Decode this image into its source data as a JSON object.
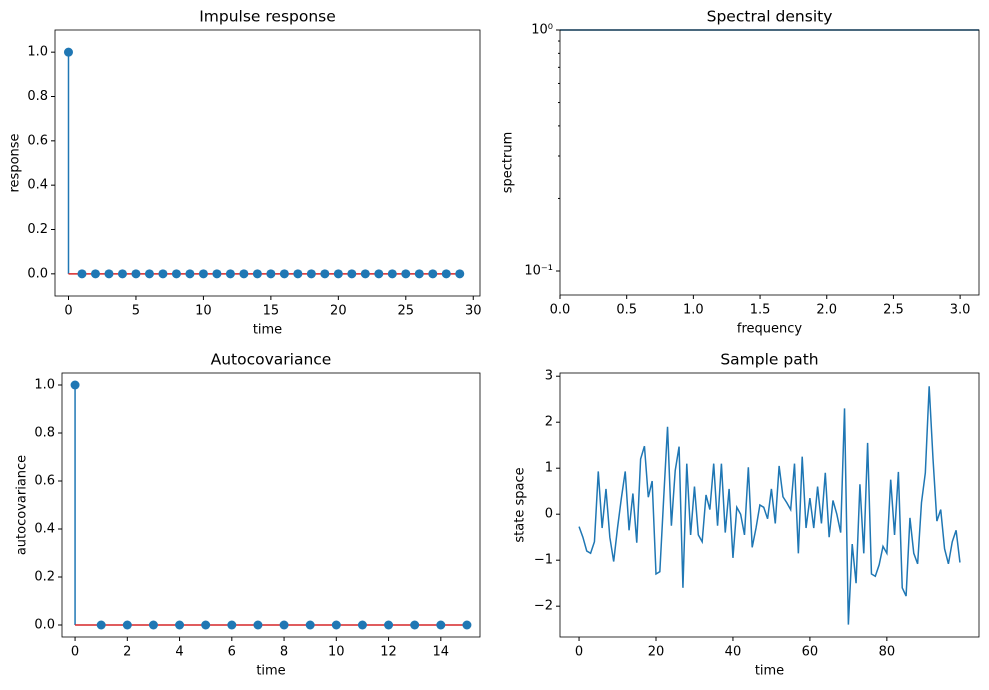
{
  "chart_data": [
    {
      "type": "stem",
      "title": "Impulse response",
      "xlabel": "time",
      "ylabel": "response",
      "x": [
        0,
        1,
        2,
        3,
        4,
        5,
        6,
        7,
        8,
        9,
        10,
        11,
        12,
        13,
        14,
        15,
        16,
        17,
        18,
        19,
        20,
        21,
        22,
        23,
        24,
        25,
        26,
        27,
        28,
        29
      ],
      "series": [
        {
          "color": "#1f77b4",
          "values": [
            1,
            0,
            0,
            0,
            0,
            0,
            0,
            0,
            0,
            0,
            0,
            0,
            0,
            0,
            0,
            0,
            0,
            0,
            0,
            0,
            0,
            0,
            0,
            0,
            0,
            0,
            0,
            0,
            0,
            0
          ]
        }
      ],
      "baseline_color": "#d62728",
      "xlim": [
        -1,
        30.5
      ],
      "xticks": [
        0,
        5,
        10,
        15,
        20,
        25,
        30
      ],
      "ylim": [
        -0.1,
        1.1
      ],
      "yticks": [
        {
          "value": 0,
          "label": "0.0"
        },
        {
          "value": 0.2,
          "label": "0.2"
        },
        {
          "value": 0.4,
          "label": "0.4"
        },
        {
          "value": 0.6,
          "label": "0.6"
        },
        {
          "value": 0.8,
          "label": "0.8"
        },
        {
          "value": 1,
          "label": "1.0"
        }
      ]
    },
    {
      "type": "line",
      "title": "Spectral density",
      "xlabel": "frequency",
      "ylabel": "spectrum",
      "yscale": "log",
      "x": [
        0,
        3.14159
      ],
      "series": [
        {
          "color": "#1f77b4",
          "values": [
            1,
            1
          ]
        }
      ],
      "xlim": [
        0,
        3.14159
      ],
      "xticks": [
        {
          "value": 0,
          "label": "0.0"
        },
        {
          "value": 0.5,
          "label": "0.5"
        },
        {
          "value": 1,
          "label": "1.0"
        },
        {
          "value": 1.5,
          "label": "1.5"
        },
        {
          "value": 2,
          "label": "2.0"
        },
        {
          "value": 2.5,
          "label": "2.5"
        },
        {
          "value": 3,
          "label": "3.0"
        }
      ],
      "ylim": [
        0.0795,
        1
      ],
      "yticks": [
        {
          "value": 0.1,
          "label": "10⁻¹"
        },
        {
          "value": 1,
          "label": "10⁰"
        }
      ],
      "yminorticks": [
        0.2,
        0.3,
        0.4,
        0.5,
        0.6,
        0.7,
        0.8,
        0.9
      ]
    },
    {
      "type": "stem",
      "title": "Autocovariance",
      "xlabel": "time",
      "ylabel": "autocovariance",
      "x": [
        0,
        1,
        2,
        3,
        4,
        5,
        6,
        7,
        8,
        9,
        10,
        11,
        12,
        13,
        14,
        15
      ],
      "series": [
        {
          "color": "#1f77b4",
          "values": [
            1,
            0,
            0,
            0,
            0,
            0,
            0,
            0,
            0,
            0,
            0,
            0,
            0,
            0,
            0,
            0
          ]
        }
      ],
      "baseline_color": "#d62728",
      "xlim": [
        -0.5,
        15.5
      ],
      "xticks": [
        0,
        2,
        4,
        6,
        8,
        10,
        12,
        14
      ],
      "ylim": [
        -0.05,
        1.05
      ],
      "yticks": [
        {
          "value": 0,
          "label": "0.0"
        },
        {
          "value": 0.2,
          "label": "0.2"
        },
        {
          "value": 0.4,
          "label": "0.4"
        },
        {
          "value": 0.6,
          "label": "0.6"
        },
        {
          "value": 0.8,
          "label": "0.8"
        },
        {
          "value": 1,
          "label": "1.0"
        }
      ]
    },
    {
      "type": "line",
      "title": "Sample path",
      "xlabel": "time",
      "ylabel": "state space",
      "x": [
        0,
        1,
        2,
        3,
        4,
        5,
        6,
        7,
        8,
        9,
        10,
        11,
        12,
        13,
        14,
        15,
        16,
        17,
        18,
        19,
        20,
        21,
        22,
        23,
        24,
        25,
        26,
        27,
        28,
        29,
        30,
        31,
        32,
        33,
        34,
        35,
        36,
        37,
        38,
        39,
        40,
        41,
        42,
        43,
        44,
        45,
        46,
        47,
        48,
        49,
        50,
        51,
        52,
        53,
        54,
        55,
        56,
        57,
        58,
        59,
        60,
        61,
        62,
        63,
        64,
        65,
        66,
        67,
        68,
        69,
        70,
        71,
        72,
        73,
        74,
        75,
        76,
        77,
        78,
        79,
        80,
        81,
        82,
        83,
        84,
        85,
        86,
        87,
        88,
        89,
        90,
        91,
        92,
        93,
        94,
        95,
        96,
        97,
        98,
        99
      ],
      "series": [
        {
          "color": "#1f77b4",
          "values": [
            -0.27,
            -0.5,
            -0.8,
            -0.85,
            -0.6,
            0.93,
            -0.3,
            0.55,
            -0.5,
            -1.03,
            -0.3,
            0.35,
            0.93,
            -0.35,
            0.45,
            -0.62,
            1.2,
            1.48,
            0.37,
            0.72,
            -1.3,
            -1.25,
            0.35,
            1.9,
            -0.25,
            0.95,
            1.47,
            -1.6,
            1.1,
            -0.45,
            0.6,
            -0.45,
            -0.6,
            0.42,
            0.1,
            1.1,
            -0.25,
            1.1,
            -0.4,
            0.55,
            -0.95,
            0.15,
            0.0,
            -0.45,
            1.02,
            -0.72,
            -0.3,
            0.2,
            0.15,
            -0.1,
            0.55,
            -0.2,
            1.05,
            0.38,
            0.25,
            0.1,
            1.1,
            -0.85,
            1.25,
            -0.3,
            0.35,
            -0.3,
            0.6,
            -0.2,
            0.9,
            -0.5,
            0.3,
            0.0,
            -0.4,
            2.3,
            -2.4,
            -0.65,
            -1.5,
            0.65,
            -0.85,
            1.55,
            -1.3,
            -1.35,
            -1.1,
            -0.7,
            -0.85,
            0.75,
            -0.45,
            0.92,
            -1.6,
            -1.78,
            -0.08,
            -0.85,
            -1.08,
            0.25,
            0.9,
            2.78,
            1.2,
            -0.15,
            0.1,
            -0.75,
            -1.08,
            -0.6,
            -0.35,
            -1.05
          ]
        }
      ],
      "xlim": [
        -4.95,
        103.95
      ],
      "xticks": [
        0,
        20,
        40,
        60,
        80
      ],
      "ylim": [
        -2.67,
        3.07
      ],
      "yticks": [
        {
          "value": -2,
          "label": "−2"
        },
        {
          "value": -1,
          "label": "−1"
        },
        0,
        1,
        2,
        3
      ]
    }
  ]
}
